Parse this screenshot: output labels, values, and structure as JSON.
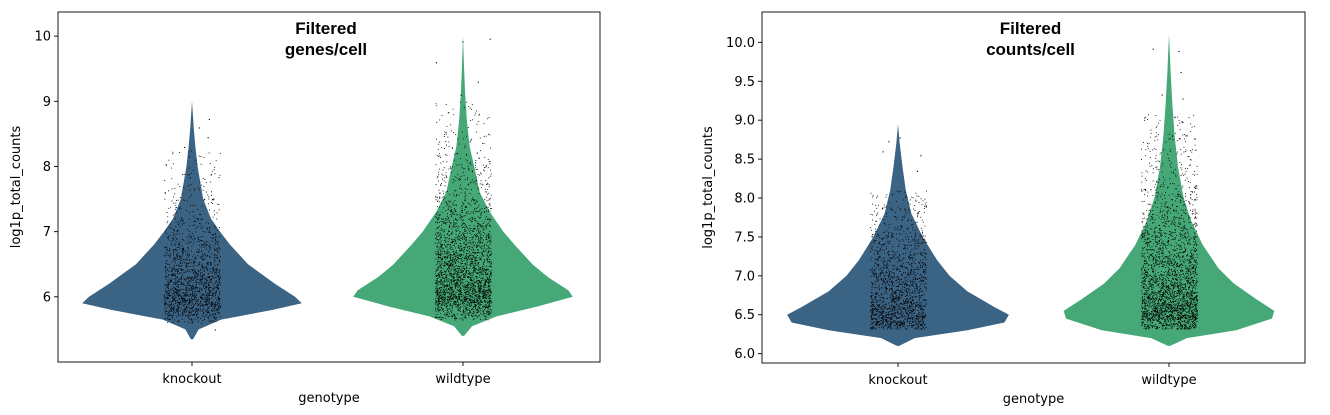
{
  "chart_data": [
    {
      "type": "violin",
      "title_lines": [
        "Filtered",
        "genes/cell"
      ],
      "xlabel": "genotype",
      "ylabel": "log1p_total_counts",
      "categories": [
        "knockout",
        "wildtype"
      ],
      "ylim": [
        5.0,
        10.37
      ],
      "yticks": [
        6,
        7,
        8,
        9,
        10
      ],
      "ytick_labels": [
        "6",
        "7",
        "8",
        "9",
        "10"
      ],
      "colors": [
        "#3b6384",
        "#46a876"
      ],
      "series": [
        {
          "category": "knockout",
          "profile": [
            [
              5.35,
              0.01
            ],
            [
              5.5,
              0.06
            ],
            [
              5.65,
              0.26
            ],
            [
              5.8,
              0.72
            ],
            [
              5.9,
              0.98
            ],
            [
              6.0,
              0.92
            ],
            [
              6.2,
              0.74
            ],
            [
              6.5,
              0.5
            ],
            [
              6.8,
              0.34
            ],
            [
              7.0,
              0.25
            ],
            [
              7.2,
              0.17
            ],
            [
              7.5,
              0.1
            ],
            [
              7.8,
              0.07
            ],
            [
              8.0,
              0.05
            ],
            [
              8.3,
              0.03
            ],
            [
              8.6,
              0.015
            ],
            [
              9.0,
              0.0
            ]
          ],
          "jitter_range": [
            5.6,
            8.25
          ],
          "outliers": [
            8.73,
            8.6,
            8.45,
            8.3,
            5.5
          ]
        },
        {
          "category": "wildtype",
          "profile": [
            [
              5.4,
              0.01
            ],
            [
              5.55,
              0.08
            ],
            [
              5.7,
              0.3
            ],
            [
              5.85,
              0.66
            ],
            [
              6.0,
              0.98
            ],
            [
              6.1,
              0.94
            ],
            [
              6.3,
              0.76
            ],
            [
              6.5,
              0.62
            ],
            [
              6.8,
              0.46
            ],
            [
              7.0,
              0.36
            ],
            [
              7.3,
              0.24
            ],
            [
              7.6,
              0.15
            ],
            [
              8.0,
              0.1
            ],
            [
              8.3,
              0.06
            ],
            [
              8.7,
              0.035
            ],
            [
              9.1,
              0.02
            ],
            [
              9.5,
              0.01
            ],
            [
              10.0,
              0.0
            ]
          ],
          "jitter_range": [
            5.65,
            9.0
          ],
          "outliers": [
            9.96,
            9.92,
            9.6,
            9.3,
            9.1
          ]
        }
      ]
    },
    {
      "type": "violin",
      "title_lines": [
        "Filtered",
        "counts/cell"
      ],
      "xlabel": "genotype",
      "ylabel": "log1p_total_counts",
      "categories": [
        "knockout",
        "wildtype"
      ],
      "ylim": [
        5.88,
        10.39
      ],
      "yticks": [
        6.0,
        6.5,
        7.0,
        7.5,
        8.0,
        8.5,
        9.0,
        9.5,
        10.0
      ],
      "ytick_labels": [
        "6.0",
        "6.5",
        "7.0",
        "7.5",
        "8.0",
        "8.5",
        "9.0",
        "9.5",
        "10.0"
      ],
      "colors": [
        "#3b6384",
        "#46a876"
      ],
      "series": [
        {
          "category": "knockout",
          "profile": [
            [
              6.1,
              0.01
            ],
            [
              6.2,
              0.15
            ],
            [
              6.3,
              0.62
            ],
            [
              6.4,
              0.95
            ],
            [
              6.5,
              0.99
            ],
            [
              6.6,
              0.86
            ],
            [
              6.8,
              0.62
            ],
            [
              7.0,
              0.46
            ],
            [
              7.2,
              0.35
            ],
            [
              7.5,
              0.22
            ],
            [
              7.8,
              0.12
            ],
            [
              8.1,
              0.07
            ],
            [
              8.4,
              0.04
            ],
            [
              8.7,
              0.015
            ],
            [
              8.95,
              0.0
            ]
          ],
          "jitter_range": [
            6.32,
            8.1
          ],
          "outliers": [
            8.78,
            8.73,
            8.6,
            8.55,
            8.35
          ]
        },
        {
          "category": "wildtype",
          "profile": [
            [
              6.1,
              0.01
            ],
            [
              6.2,
              0.16
            ],
            [
              6.3,
              0.6
            ],
            [
              6.45,
              0.92
            ],
            [
              6.55,
              0.94
            ],
            [
              6.7,
              0.78
            ],
            [
              6.9,
              0.58
            ],
            [
              7.1,
              0.44
            ],
            [
              7.4,
              0.3
            ],
            [
              7.7,
              0.2
            ],
            [
              8.0,
              0.13
            ],
            [
              8.4,
              0.08
            ],
            [
              8.8,
              0.05
            ],
            [
              9.2,
              0.03
            ],
            [
              9.6,
              0.015
            ],
            [
              10.1,
              0.0
            ]
          ],
          "jitter_range": [
            6.32,
            9.1
          ],
          "outliers": [
            9.92,
            9.89,
            9.62,
            9.33,
            9.28
          ]
        }
      ]
    }
  ]
}
